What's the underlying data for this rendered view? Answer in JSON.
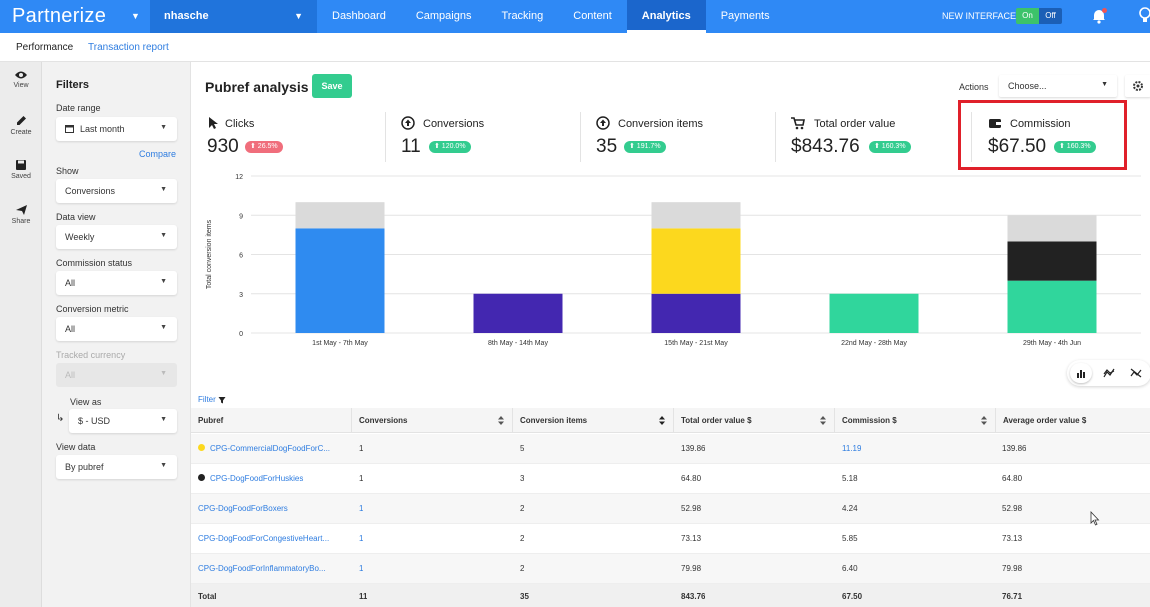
{
  "header": {
    "logo": "Partnerize",
    "account": "nhasche",
    "nav": [
      "Dashboard",
      "Campaigns",
      "Tracking",
      "Content",
      "Analytics",
      "Payments"
    ],
    "active_nav": "Analytics",
    "new_interface_label": "NEW INTERFACE",
    "toggle_on": "On",
    "toggle_off": "Off"
  },
  "subnav": {
    "performance": "Performance",
    "transaction_report": "Transaction report"
  },
  "rail": [
    {
      "label": "View",
      "icon": "eye-icon"
    },
    {
      "label": "Create",
      "icon": "pencil-icon"
    },
    {
      "label": "Saved",
      "icon": "floppy-disk-icon"
    },
    {
      "label": "Share",
      "icon": "send-icon"
    }
  ],
  "filters": {
    "title": "Filters",
    "date_range_label": "Date range",
    "date_range_value": "Last month",
    "compare": "Compare",
    "show_label": "Show",
    "show_value": "Conversions",
    "data_view_label": "Data view",
    "data_view_value": "Weekly",
    "commission_status_label": "Commission status",
    "commission_status_value": "All",
    "conversion_metric_label": "Conversion metric",
    "conversion_metric_value": "All",
    "tracked_currency_label": "Tracked currency",
    "tracked_currency_value": "All",
    "view_as_label": "View as",
    "view_as_value": "$ - USD",
    "view_data_label": "View data",
    "view_data_value": "By pubref"
  },
  "main": {
    "title": "Pubref analysis",
    "save": "Save",
    "actions_label": "Actions",
    "actions_placeholder": "Choose..."
  },
  "kpis": [
    {
      "label": "Clicks",
      "value": "930",
      "badge": "26.5%",
      "badge_color": "#f06e7c",
      "icon": "cursor-icon"
    },
    {
      "label": "Conversions",
      "value": "11",
      "badge": "120.0%",
      "badge_color": "#33cc8f",
      "icon": "up-circle-icon"
    },
    {
      "label": "Conversion items",
      "value": "35",
      "badge": "191.7%",
      "badge_color": "#33cc8f",
      "icon": "up-circle-icon"
    },
    {
      "label": "Total order value",
      "value": "$843.76",
      "badge": "160.3%",
      "badge_color": "#33cc8f",
      "icon": "cart-icon"
    },
    {
      "label": "Commission",
      "value": "$67.50",
      "badge": "160.3%",
      "badge_color": "#33cc8f",
      "icon": "wallet-icon"
    }
  ],
  "chart_data": {
    "type": "bar",
    "stacked": true,
    "ylabel": "Total conversion items",
    "ylim": [
      0,
      12
    ],
    "yticks": [
      0,
      3,
      6,
      9,
      12
    ],
    "categories": [
      "1st May - 7th May",
      "8th May - 14th May",
      "15th May - 21st May",
      "22nd May - 28th May",
      "29th May - 4th Jun"
    ],
    "series": [
      {
        "color": "#2f8bf0",
        "values": [
          8,
          0,
          0,
          0,
          0
        ]
      },
      {
        "color": "#4327b0",
        "values": [
          0,
          3,
          3,
          0,
          0
        ]
      },
      {
        "color": "#30d69c",
        "values": [
          0,
          0,
          0,
          3,
          4
        ]
      },
      {
        "color": "#fcd81e",
        "values": [
          0,
          0,
          5,
          0,
          0
        ]
      },
      {
        "color": "#222222",
        "values": [
          0,
          0,
          0,
          0,
          3
        ]
      },
      {
        "color": "#dadada",
        "values": [
          2,
          0,
          2,
          0,
          2
        ]
      }
    ]
  },
  "table": {
    "filter_label": "Filter",
    "columns": [
      "Pubref",
      "Conversions",
      "Conversion items",
      "Total order value $",
      "Commission $",
      "Average order value $"
    ],
    "rows": [
      {
        "pubref": "CPG-CommercialDogFoodForC...",
        "dot": "#fcd81e",
        "conversions": "1",
        "items": "5",
        "tov": "139.86",
        "commission": "11.19",
        "aov": "139.86"
      },
      {
        "pubref": "CPG-DogFoodForHuskies",
        "dot": "#222222",
        "conversions": "1",
        "items": "3",
        "tov": "64.80",
        "commission": "5.18",
        "aov": "64.80"
      },
      {
        "pubref": "CPG-DogFoodForBoxers",
        "dot": "",
        "conversions": "1",
        "items": "2",
        "tov": "52.98",
        "commission": "4.24",
        "aov": "52.98"
      },
      {
        "pubref": "CPG-DogFoodForCongestiveHeart...",
        "dot": "",
        "conversions": "1",
        "items": "2",
        "tov": "73.13",
        "commission": "5.85",
        "aov": "73.13"
      },
      {
        "pubref": "CPG-DogFoodForInflammatoryBo...",
        "dot": "",
        "conversions": "1",
        "items": "2",
        "tov": "79.98",
        "commission": "6.40",
        "aov": "79.98"
      }
    ],
    "total": {
      "label": "Total",
      "conversions": "11",
      "items": "35",
      "tov": "843.76",
      "commission": "67.50",
      "aov": "76.71"
    }
  }
}
